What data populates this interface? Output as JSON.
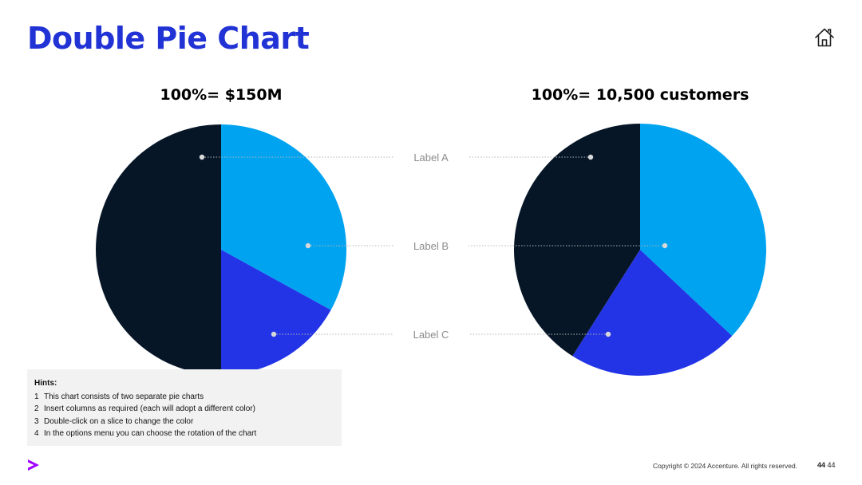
{
  "title": "Double Pie Chart",
  "hints": {
    "title": "Hints:",
    "items": [
      {
        "num": "1",
        "text": "This chart consists of two separate pie charts"
      },
      {
        "num": "2",
        "text": "Insert columns as required (each will adopt a different color)"
      },
      {
        "num": "3",
        "text": "Double-click on a slice to change the color"
      },
      {
        "num": "4",
        "text": "In the options menu you can choose the rotation of the chart"
      }
    ]
  },
  "footer": {
    "copyright": "Copyright © 2024 Accenture. All rights reserved.",
    "page_bold": "44",
    "page_plain": "44"
  },
  "icons": {
    "home": "home-icon",
    "logo": "accenture-chevron-logo"
  },
  "chart_data": [
    {
      "type": "pie",
      "title": "100%= $150M",
      "categories": [
        "Label A",
        "Label B",
        "Label C"
      ],
      "values": [
        50,
        33,
        17
      ],
      "colors": [
        "#061627",
        "#00a3f0",
        "#2234e6"
      ]
    },
    {
      "type": "pie",
      "title": "100%= 10,500 customers",
      "categories": [
        "Label A",
        "Label B",
        "Label C"
      ],
      "values": [
        41,
        37,
        22
      ],
      "colors": [
        "#061627",
        "#00a3f0",
        "#2234e6"
      ]
    }
  ]
}
